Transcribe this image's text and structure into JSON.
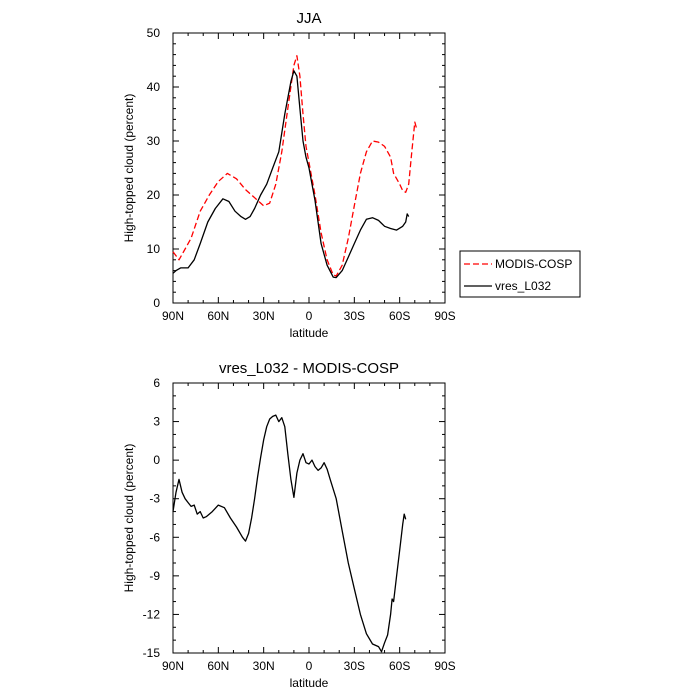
{
  "chart_data": [
    {
      "type": "line",
      "title": "JJA",
      "xlabel": "latitude",
      "ylabel": "High-topped cloud (percent)",
      "xlim": [
        -90,
        90
      ],
      "ylim": [
        0,
        50
      ],
      "xticks": [
        {
          "value": -90,
          "label": "90N"
        },
        {
          "value": -60,
          "label": "60N"
        },
        {
          "value": -30,
          "label": "30N"
        },
        {
          "value": 0,
          "label": "0"
        },
        {
          "value": 30,
          "label": "30S"
        },
        {
          "value": 60,
          "label": "60S"
        },
        {
          "value": 90,
          "label": "90S"
        }
      ],
      "yticks": [
        {
          "value": 0,
          "label": "0"
        },
        {
          "value": 10,
          "label": "10"
        },
        {
          "value": 20,
          "label": "20"
        },
        {
          "value": 30,
          "label": "30"
        },
        {
          "value": 40,
          "label": "40"
        },
        {
          "value": 50,
          "label": "50"
        }
      ],
      "legend_position": "right",
      "series": [
        {
          "name": "MODIS-COSP",
          "color": "#ff0000",
          "dash": "dashed",
          "points": [
            [
              -90,
              9.5
            ],
            [
              -86,
              8
            ],
            [
              -82,
              10
            ],
            [
              -78,
              12
            ],
            [
              -72,
              17
            ],
            [
              -66,
              20
            ],
            [
              -60,
              22.5
            ],
            [
              -54,
              24
            ],
            [
              -48,
              23
            ],
            [
              -42,
              21
            ],
            [
              -36,
              19.5
            ],
            [
              -30,
              18
            ],
            [
              -26,
              18.5
            ],
            [
              -22,
              22
            ],
            [
              -18,
              28
            ],
            [
              -14,
              36
            ],
            [
              -10,
              44
            ],
            [
              -8,
              45.8
            ],
            [
              -6,
              42
            ],
            [
              -4,
              35
            ],
            [
              -2,
              29
            ],
            [
              0,
              26
            ],
            [
              4,
              20
            ],
            [
              8,
              13
            ],
            [
              12,
              8
            ],
            [
              16,
              5.2
            ],
            [
              18,
              5
            ],
            [
              22,
              7
            ],
            [
              26,
              12
            ],
            [
              30,
              18
            ],
            [
              34,
              24
            ],
            [
              38,
              28
            ],
            [
              42,
              30
            ],
            [
              46,
              29.8
            ],
            [
              50,
              29
            ],
            [
              54,
              27
            ],
            [
              56,
              24
            ],
            [
              60,
              22
            ],
            [
              62,
              20.8
            ],
            [
              64,
              20.5
            ],
            [
              66,
              22
            ],
            [
              68,
              28
            ],
            [
              70,
              33.5
            ],
            [
              71,
              32.5
            ]
          ]
        },
        {
          "name": "vres_L032",
          "color": "#000000",
          "dash": "solid",
          "points": [
            [
              -90,
              5.5
            ],
            [
              -88,
              6
            ],
            [
              -85,
              6.5
            ],
            [
              -80,
              6.5
            ],
            [
              -76,
              8
            ],
            [
              -72,
              11
            ],
            [
              -67,
              15
            ],
            [
              -62,
              17.5
            ],
            [
              -57,
              19.3
            ],
            [
              -53,
              18.8
            ],
            [
              -49,
              17
            ],
            [
              -45,
              16
            ],
            [
              -42,
              15.5
            ],
            [
              -39,
              16
            ],
            [
              -36,
              17.5
            ],
            [
              -32,
              20
            ],
            [
              -28,
              22
            ],
            [
              -24,
              25
            ],
            [
              -20,
              28
            ],
            [
              -16,
              35
            ],
            [
              -12,
              41
            ],
            [
              -10,
              43
            ],
            [
              -8,
              42
            ],
            [
              -6,
              36
            ],
            [
              -4,
              30
            ],
            [
              -2,
              27
            ],
            [
              0,
              25
            ],
            [
              4,
              19
            ],
            [
              8,
              11
            ],
            [
              12,
              7
            ],
            [
              16,
              4.8
            ],
            [
              18,
              4.7
            ],
            [
              22,
              6
            ],
            [
              26,
              8.5
            ],
            [
              30,
              11
            ],
            [
              34,
              13.5
            ],
            [
              38,
              15.5
            ],
            [
              42,
              15.8
            ],
            [
              46,
              15.3
            ],
            [
              50,
              14.2
            ],
            [
              54,
              13.8
            ],
            [
              58,
              13.5
            ],
            [
              62,
              14.2
            ],
            [
              64,
              15
            ],
            [
              65,
              16.5
            ],
            [
              66,
              16
            ]
          ]
        }
      ]
    },
    {
      "type": "line",
      "title": "vres_L032 - MODIS-COSP",
      "xlabel": "latitude",
      "ylabel": "High-topped cloud (percent)",
      "xlim": [
        -90,
        90
      ],
      "ylim": [
        -15,
        6
      ],
      "xticks": [
        {
          "value": -90,
          "label": "90N"
        },
        {
          "value": -60,
          "label": "60N"
        },
        {
          "value": -30,
          "label": "30N"
        },
        {
          "value": 0,
          "label": "0"
        },
        {
          "value": 30,
          "label": "30S"
        },
        {
          "value": 60,
          "label": "60S"
        },
        {
          "value": 90,
          "label": "90S"
        }
      ],
      "yticks": [
        {
          "value": 6,
          "label": "6"
        },
        {
          "value": 3,
          "label": "3"
        },
        {
          "value": 0,
          "label": "0"
        },
        {
          "value": -3,
          "label": "-3"
        },
        {
          "value": -6,
          "label": "-6"
        },
        {
          "value": -9,
          "label": "-9"
        },
        {
          "value": -12,
          "label": "-12"
        },
        {
          "value": -15,
          "label": "-15"
        }
      ],
      "series": [
        {
          "name": "vres_L032 - MODIS-COSP",
          "color": "#000000",
          "dash": "solid",
          "points": [
            [
              -90,
              -4
            ],
            [
              -88,
              -2.5
            ],
            [
              -86,
              -1.5
            ],
            [
              -84,
              -2.5
            ],
            [
              -82,
              -3
            ],
            [
              -80,
              -3.3
            ],
            [
              -78,
              -3.6
            ],
            [
              -76,
              -3.5
            ],
            [
              -74,
              -4.2
            ],
            [
              -72,
              -4
            ],
            [
              -70,
              -4.5
            ],
            [
              -68,
              -4.4
            ],
            [
              -64,
              -4
            ],
            [
              -60,
              -3.5
            ],
            [
              -56,
              -3.7
            ],
            [
              -52,
              -4.5
            ],
            [
              -48,
              -5.2
            ],
            [
              -44,
              -6
            ],
            [
              -42,
              -6.3
            ],
            [
              -40,
              -5.7
            ],
            [
              -38,
              -4.5
            ],
            [
              -36,
              -3
            ],
            [
              -34,
              -1.3
            ],
            [
              -32,
              0.2
            ],
            [
              -30,
              1.6
            ],
            [
              -28,
              2.6
            ],
            [
              -26,
              3.2
            ],
            [
              -24,
              3.4
            ],
            [
              -22,
              3.5
            ],
            [
              -20,
              3
            ],
            [
              -18,
              3.3
            ],
            [
              -16,
              2.6
            ],
            [
              -14,
              0.5
            ],
            [
              -12,
              -1.5
            ],
            [
              -10,
              -2.9
            ],
            [
              -8,
              -1
            ],
            [
              -6,
              0
            ],
            [
              -4,
              0.5
            ],
            [
              -2,
              -0.2
            ],
            [
              0,
              -0.3
            ],
            [
              2,
              0
            ],
            [
              4,
              -0.5
            ],
            [
              6,
              -0.8
            ],
            [
              8,
              -0.6
            ],
            [
              10,
              -0.2
            ],
            [
              12,
              -0.7
            ],
            [
              14,
              -1.5
            ],
            [
              18,
              -3
            ],
            [
              22,
              -5.5
            ],
            [
              26,
              -8
            ],
            [
              30,
              -10
            ],
            [
              34,
              -12
            ],
            [
              38,
              -13.5
            ],
            [
              42,
              -14.3
            ],
            [
              46,
              -14.5
            ],
            [
              48,
              -14.9
            ],
            [
              50,
              -14.2
            ],
            [
              52,
              -13.6
            ],
            [
              54,
              -12
            ],
            [
              55,
              -10.8
            ],
            [
              56,
              -11
            ],
            [
              58,
              -9
            ],
            [
              60,
              -7
            ],
            [
              62,
              -5
            ],
            [
              63,
              -4.2
            ],
            [
              64,
              -4.6
            ]
          ]
        }
      ]
    }
  ]
}
